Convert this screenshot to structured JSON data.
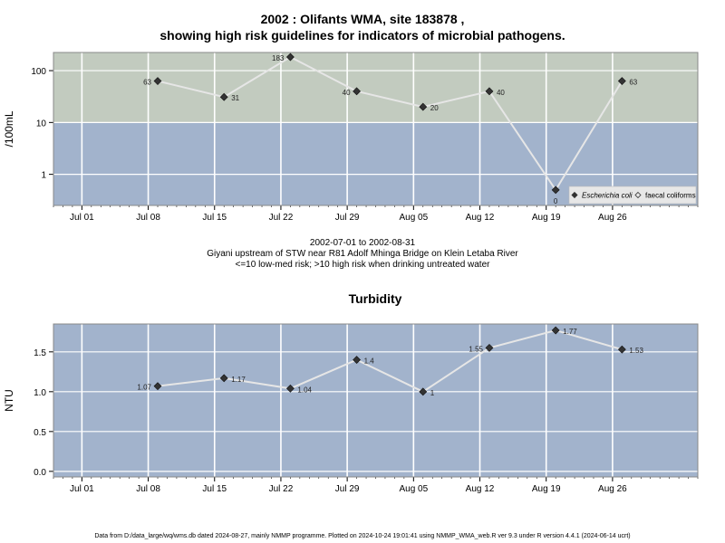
{
  "title": {
    "line1": "2002 : Olifants WMA, site 183878 ,",
    "line2": "showing high risk guidelines for indicators of microbial pathogens."
  },
  "caption": {
    "line1": "2002-07-01 to 2002-08-31",
    "line2": "Giyani upstream of STW near R81 Adolf Mhinga Bridge on Klein Letaba River",
    "line3": "<=10 low-med risk; >10 high risk when drinking untreated water"
  },
  "footer": "Data from D:/data_large/wq/wms.db dated 2024-08-27, mainly NMMP programme. Plotted on 2024-10-24 19:01:41 using NMMP_WMA_web.R ver 9.3 under R version 4.4.1 (2024-06-14 ucrt)",
  "colors": {
    "high_risk_band": "#c2cbbf",
    "low_risk_band": "#a2b3cc",
    "line": "#e6e6e6",
    "point": "#333333",
    "grid": "#ffffff"
  },
  "chart_data": [
    {
      "type": "line",
      "title": "",
      "xlabel": "",
      "ylabel": "/100mL",
      "yscale": "log",
      "ylim_log10": [
        -0.6,
        2.35
      ],
      "yticks": [
        {
          "value": 1,
          "label": "1"
        },
        {
          "value": 10,
          "label": "10"
        },
        {
          "value": 100,
          "label": "100"
        }
      ],
      "xlim": [
        "2002-06-28",
        "2002-09-04"
      ],
      "xticks": [
        {
          "date": "2002-07-01",
          "label": "Jul 01"
        },
        {
          "date": "2002-07-08",
          "label": "Jul 08"
        },
        {
          "date": "2002-07-15",
          "label": "Jul 15"
        },
        {
          "date": "2002-07-22",
          "label": "Jul 22"
        },
        {
          "date": "2002-07-29",
          "label": "Jul 29"
        },
        {
          "date": "2002-08-05",
          "label": "Aug 05"
        },
        {
          "date": "2002-08-12",
          "label": "Aug 12"
        },
        {
          "date": "2002-08-19",
          "label": "Aug 19"
        },
        {
          "date": "2002-08-26",
          "label": "Aug 26"
        }
      ],
      "bands": [
        {
          "from": 10,
          "to": "top",
          "color": "#c2cbbf",
          "meaning": ">10 high risk"
        },
        {
          "from": "bottom",
          "to": 10,
          "color": "#a2b3cc",
          "meaning": "<=10 low-med risk"
        }
      ],
      "legend": {
        "placement": "bottom-right",
        "entries": [
          {
            "label": "Escherichia coli",
            "italic": true,
            "marker": "filled-diamond"
          },
          {
            "label": "faecal coliforms",
            "italic": false,
            "marker": "open-diamond"
          }
        ]
      },
      "series": [
        {
          "name": "Escherichia coli",
          "points": [
            {
              "x": "2002-07-09",
              "y": 63,
              "label": "63",
              "label_side": "left"
            },
            {
              "x": "2002-07-16",
              "y": 31,
              "label": "31",
              "label_side": "right"
            },
            {
              "x": "2002-07-23",
              "y": 183,
              "label": "183",
              "label_side": "left"
            },
            {
              "x": "2002-07-30",
              "y": 40,
              "label": "40",
              "label_side": "left"
            },
            {
              "x": "2002-08-06",
              "y": 20,
              "label": "20",
              "label_side": "right"
            },
            {
              "x": "2002-08-13",
              "y": 40,
              "label": "40",
              "label_side": "right"
            },
            {
              "x": "2002-08-20",
              "y": 0.5,
              "label": "0",
              "label_side": "below"
            },
            {
              "x": "2002-08-27",
              "y": 63,
              "label": "63",
              "label_side": "right"
            }
          ]
        }
      ]
    },
    {
      "type": "line",
      "title": "Turbidity",
      "xlabel": "",
      "ylabel": "NTU",
      "yscale": "linear",
      "ylim": [
        -0.07,
        1.85
      ],
      "yticks": [
        {
          "value": 0,
          "label": "0.0"
        },
        {
          "value": 0.5,
          "label": "0.5"
        },
        {
          "value": 1.0,
          "label": "1.0"
        },
        {
          "value": 1.5,
          "label": "1.5"
        }
      ],
      "xlim": [
        "2002-06-28",
        "2002-09-04"
      ],
      "xticks": [
        {
          "date": "2002-07-01",
          "label": "Jul 01"
        },
        {
          "date": "2002-07-08",
          "label": "Jul 08"
        },
        {
          "date": "2002-07-15",
          "label": "Jul 15"
        },
        {
          "date": "2002-07-22",
          "label": "Jul 22"
        },
        {
          "date": "2002-07-29",
          "label": "Jul 29"
        },
        {
          "date": "2002-08-05",
          "label": "Aug 05"
        },
        {
          "date": "2002-08-12",
          "label": "Aug 12"
        },
        {
          "date": "2002-08-19",
          "label": "Aug 19"
        },
        {
          "date": "2002-08-26",
          "label": "Aug 26"
        }
      ],
      "series": [
        {
          "points": [
            {
              "x": "2002-07-09",
              "y": 1.07,
              "label": "1.07",
              "label_side": "left"
            },
            {
              "x": "2002-07-16",
              "y": 1.17,
              "label": "1.17",
              "label_side": "right"
            },
            {
              "x": "2002-07-23",
              "y": 1.04,
              "label": "1.04",
              "label_side": "right"
            },
            {
              "x": "2002-07-30",
              "y": 1.4,
              "label": "1.4",
              "label_side": "right"
            },
            {
              "x": "2002-08-06",
              "y": 1.0,
              "label": "1",
              "label_side": "right"
            },
            {
              "x": "2002-08-13",
              "y": 1.55,
              "label": "1.55",
              "label_side": "left"
            },
            {
              "x": "2002-08-20",
              "y": 1.77,
              "label": "1.77",
              "label_side": "right"
            },
            {
              "x": "2002-08-27",
              "y": 1.53,
              "label": "1.53",
              "label_side": "right"
            }
          ]
        }
      ]
    }
  ]
}
